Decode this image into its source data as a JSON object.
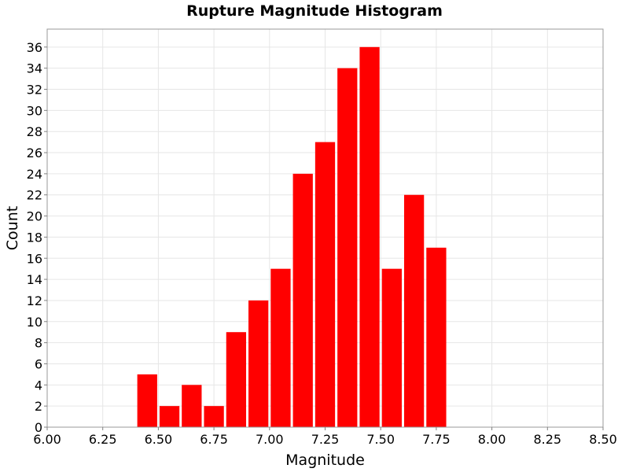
{
  "chart_data": {
    "type": "bar",
    "title": "Rupture Magnitude Histogram",
    "xlabel": "Magnitude",
    "ylabel": "Count",
    "xlim": [
      6.0,
      8.5
    ],
    "ylim": [
      0,
      37.7
    ],
    "bin_width": 0.1,
    "x_ticks": [
      6.0,
      6.25,
      6.5,
      6.75,
      7.0,
      7.25,
      7.5,
      7.75,
      8.0,
      8.25,
      8.5
    ],
    "x_tick_labels": [
      "6.00",
      "6.25",
      "6.50",
      "6.75",
      "7.00",
      "7.25",
      "7.50",
      "7.75",
      "8.00",
      "8.25",
      "8.50"
    ],
    "y_ticks": [
      0,
      2,
      4,
      6,
      8,
      10,
      12,
      14,
      16,
      18,
      20,
      22,
      24,
      26,
      28,
      30,
      32,
      34,
      36
    ],
    "y_tick_labels": [
      "0",
      "2",
      "4",
      "6",
      "8",
      "10",
      "12",
      "14",
      "16",
      "18",
      "20",
      "22",
      "24",
      "26",
      "28",
      "30",
      "32",
      "34",
      "36"
    ],
    "grid": true,
    "bar_color": "#ff0000",
    "x": [
      6.45,
      6.55,
      6.65,
      6.75,
      6.85,
      6.95,
      7.05,
      7.15,
      7.25,
      7.35,
      7.45,
      7.55,
      7.65,
      7.75
    ],
    "values": [
      5,
      2,
      4,
      2,
      9,
      12,
      15,
      24,
      27,
      34,
      36,
      15,
      22,
      17
    ]
  }
}
